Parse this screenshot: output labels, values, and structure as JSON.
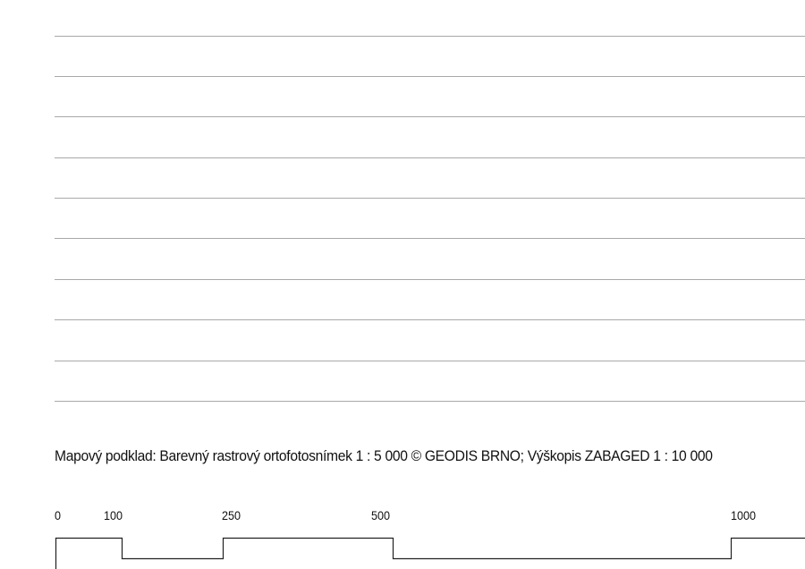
{
  "map_credit": "Mapový podklad: Barevný rastrový ortofotosnímek 1 : 5 000 © GEODIS BRNO; Výškopis ZABAGED 1 : 10 000",
  "scale_bar": {
    "ticks": [
      "0",
      "100",
      "250",
      "500",
      "1000"
    ]
  }
}
